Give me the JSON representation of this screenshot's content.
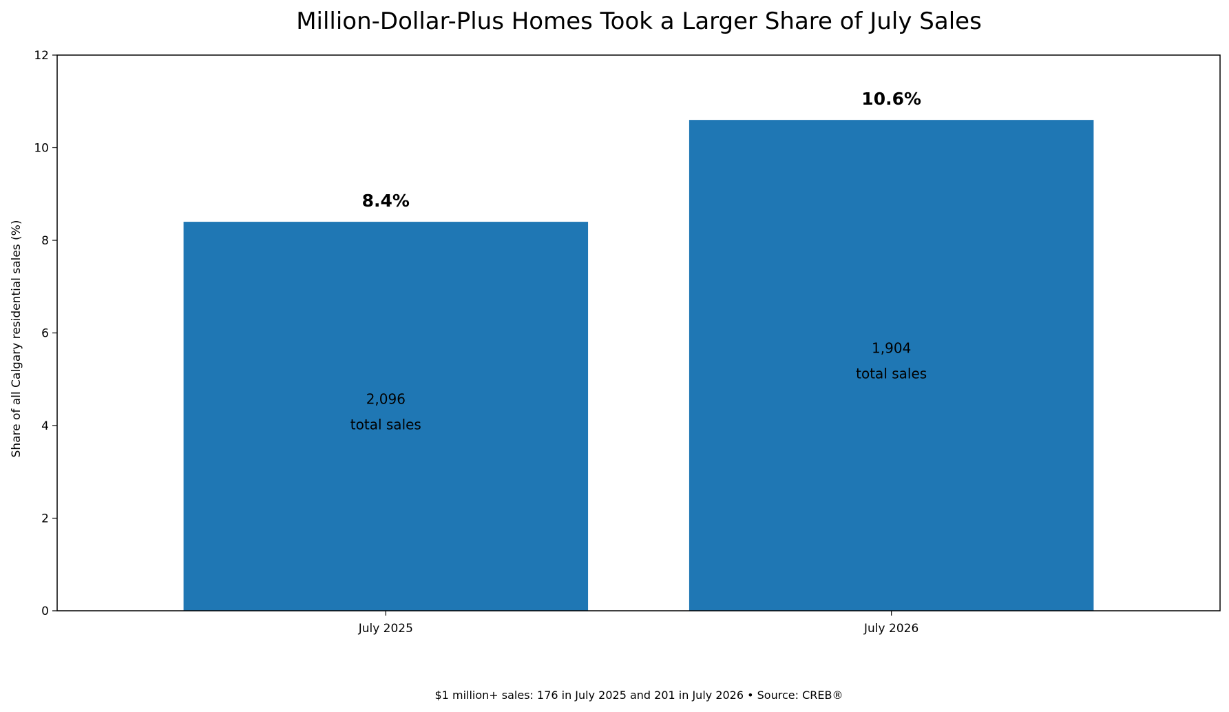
{
  "chart_data": {
    "type": "bar",
    "title": "Million-Dollar-Plus Homes Took a Larger Share of July Sales",
    "xlabel": "",
    "ylabel": "Share of all Calgary residential sales (%)",
    "categories": [
      "July 2025",
      "July 2026"
    ],
    "values": [
      8.4,
      10.6
    ],
    "value_labels": [
      "8.4%",
      "10.6%"
    ],
    "inner_labels": [
      [
        "2,096",
        "total sales"
      ],
      [
        "1,904",
        "total sales"
      ]
    ],
    "ylim": [
      0,
      12
    ],
    "yticks": [
      0,
      2,
      4,
      6,
      8,
      10,
      12
    ],
    "grid": false,
    "bar_color": "#1f77b4",
    "footnote": "$1 million+ sales: 176 in July 2025 and 201 in July 2026 • Source: CREB®"
  }
}
